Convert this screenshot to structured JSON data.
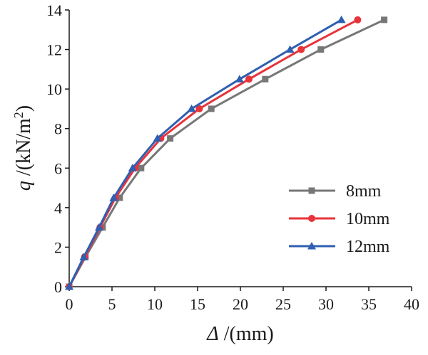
{
  "chart_data": {
    "type": "line",
    "xlabel": {
      "symbol": "Δ",
      "unit": " /(mm)"
    },
    "ylabel": {
      "symbol": "q",
      "unit": "  /(kN/m",
      "sup": "2",
      "close": ")"
    },
    "xlim": [
      0,
      40
    ],
    "ylim": [
      0,
      14
    ],
    "xticks": [
      "0",
      "5",
      "10",
      "15",
      "20",
      "25",
      "30",
      "35",
      "40"
    ],
    "yticks": [
      "0",
      "2",
      "4",
      "6",
      "8",
      "10",
      "12",
      "14"
    ],
    "grid": false,
    "legend_position": "bottom-right",
    "series": [
      {
        "name": "8mm",
        "color": "#777777",
        "marker": "square",
        "x": [
          0,
          1.9,
          3.9,
          5.9,
          8.4,
          11.8,
          16.6,
          22.9,
          29.4,
          36.8
        ],
        "y": [
          0,
          1.5,
          3.0,
          4.5,
          6.0,
          7.5,
          9.0,
          10.5,
          12.0,
          13.5
        ]
      },
      {
        "name": "10mm",
        "color": "#e8333a",
        "marker": "circle",
        "x": [
          0,
          1.8,
          3.6,
          5.4,
          7.7,
          10.7,
          15.2,
          21.0,
          27.1,
          33.7
        ],
        "y": [
          0,
          1.5,
          3.0,
          4.5,
          6.0,
          7.5,
          9.0,
          10.5,
          12.0,
          13.5
        ]
      },
      {
        "name": "12mm",
        "color": "#2f5fb0",
        "marker": "triangle",
        "x": [
          0,
          1.7,
          3.5,
          5.2,
          7.4,
          10.3,
          14.3,
          19.9,
          25.8,
          31.8
        ],
        "y": [
          0,
          1.5,
          3.0,
          4.5,
          6.0,
          7.5,
          9.0,
          10.5,
          12.0,
          13.5
        ]
      }
    ]
  }
}
